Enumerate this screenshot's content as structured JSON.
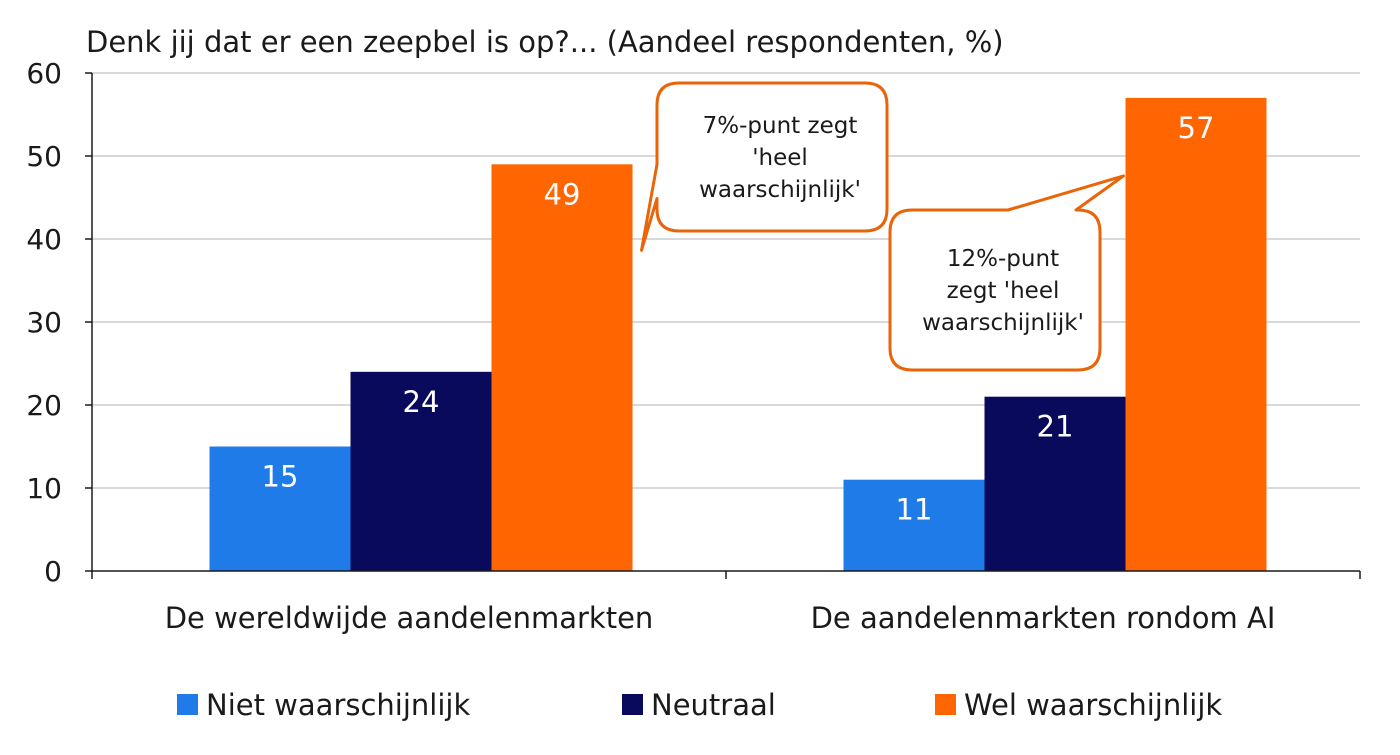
{
  "chart_data": {
    "type": "bar",
    "title": "Denk jij dat er een zeepbel is op?... (Aandeel respondenten, %)",
    "categories": [
      "De wereldwijde aandelenmarkten",
      "De aandelenmarkten rondom AI"
    ],
    "series": [
      {
        "name": "Niet waarschijnlijk",
        "values": [
          15,
          11
        ],
        "color": "#1f7be8"
      },
      {
        "name": "Neutraal",
        "values": [
          24,
          21
        ],
        "color": "#0a0a5c"
      },
      {
        "name": "Wel waarschijnlijk",
        "values": [
          49,
          57
        ],
        "color": "#ff6500"
      }
    ],
    "ylim": [
      0,
      60
    ],
    "yticks": [
      0,
      10,
      20,
      30,
      40,
      50,
      60
    ],
    "grid": true,
    "legend_position": "bottom",
    "annotations": [
      {
        "lines": [
          "7%-punt zegt",
          "'heel",
          "waarschijnlijk'"
        ],
        "category": 0,
        "series": 2
      },
      {
        "lines": [
          "12%-punt",
          "zegt 'heel",
          "waarschijnlijk'"
        ],
        "category": 1,
        "series": 2
      }
    ],
    "callout_border_color": "#e8650a"
  }
}
